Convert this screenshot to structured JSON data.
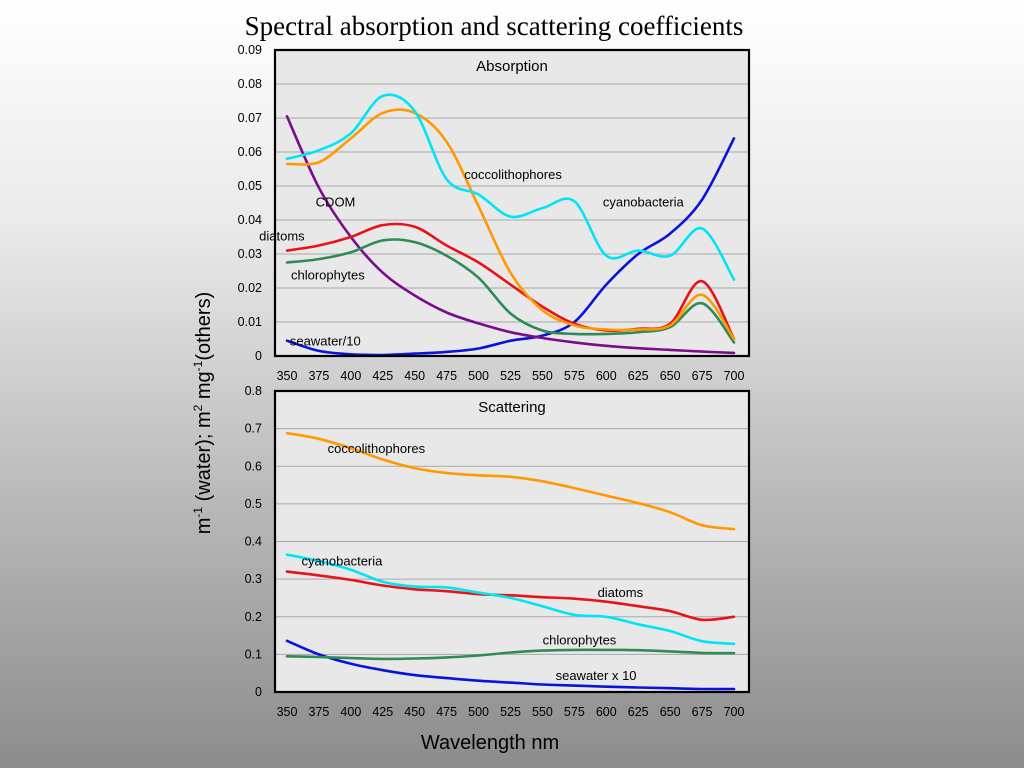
{
  "figure": {
    "title": "Spectral absorption and scattering coefficients",
    "xlabel": "Wavelength nm",
    "ylabel": {
      "p1": "m",
      "s1": "-1",
      "p2": " (water); m",
      "s2": "2",
      "p3": " mg",
      "s3": "-1",
      "p4": "(others)"
    }
  },
  "chart_data": [
    {
      "type": "line",
      "title": "Absorption",
      "x": [
        350,
        375,
        400,
        425,
        450,
        475,
        500,
        525,
        550,
        575,
        600,
        625,
        650,
        675,
        700
      ],
      "ylim": [
        0,
        0.09
      ],
      "yticks": [
        0,
        0.01,
        0.02,
        0.03,
        0.04,
        0.05,
        0.06,
        0.07,
        0.08,
        0.09
      ],
      "ytick_labels": [
        "0",
        "0.01",
        "0.02",
        "0.03",
        "0.04",
        "0.05",
        "0.06",
        "0.07",
        "0.08",
        "0.09"
      ],
      "grid": true,
      "series": [
        {
          "name": "seawater/10",
          "color": "#0a14d8",
          "values": [
            0.0045,
            0.0015,
            0.0005,
            0.0003,
            0.0007,
            0.0012,
            0.0022,
            0.0045,
            0.006,
            0.01,
            0.021,
            0.03,
            0.036,
            0.046,
            0.064
          ]
        },
        {
          "name": "CDOM",
          "color": "#7a0d8c",
          "values": [
            0.0705,
            0.0495,
            0.035,
            0.0245,
            0.0178,
            0.0128,
            0.0096,
            0.007,
            0.0053,
            0.004,
            0.003,
            0.0023,
            0.0018,
            0.0013,
            0.0009
          ]
        },
        {
          "name": "diatoms",
          "color": "#e8121b",
          "values": [
            0.031,
            0.0325,
            0.035,
            0.0385,
            0.038,
            0.0325,
            0.0275,
            0.021,
            0.0145,
            0.0095,
            0.0075,
            0.008,
            0.0095,
            0.022,
            0.005
          ]
        },
        {
          "name": "chlorophytes",
          "color": "#2e8b57",
          "values": [
            0.0275,
            0.0285,
            0.0305,
            0.034,
            0.0335,
            0.0295,
            0.023,
            0.0125,
            0.0075,
            0.0065,
            0.0065,
            0.007,
            0.0085,
            0.0155,
            0.004
          ]
        },
        {
          "name": "coccolithophores",
          "color": "#ff9900",
          "values": [
            0.0565,
            0.057,
            0.064,
            0.0715,
            0.0715,
            0.063,
            0.044,
            0.0245,
            0.0135,
            0.009,
            0.0078,
            0.0078,
            0.009,
            0.018,
            0.005
          ]
        },
        {
          "name": "cyanobacteria",
          "color": "#00e5f5",
          "values": [
            0.058,
            0.0605,
            0.0655,
            0.0765,
            0.072,
            0.052,
            0.0475,
            0.041,
            0.0435,
            0.0455,
            0.0295,
            0.031,
            0.0295,
            0.0375,
            0.0225
          ]
        }
      ],
      "annotations": [
        {
          "text": "coccolithophores",
          "x": 527,
          "y": 0.0535
        },
        {
          "text": "cyanobacteria",
          "x": 629,
          "y": 0.0455
        },
        {
          "text": "CDOM",
          "x": 388,
          "y": 0.0455
        },
        {
          "text": "diatoms",
          "x": 346,
          "y": 0.0355
        },
        {
          "text": "chlorophytes",
          "x": 382,
          "y": 0.024
        },
        {
          "text": "seawater/10",
          "x": 380,
          "y": 0.0045
        }
      ]
    },
    {
      "type": "line",
      "title": "Scattering",
      "x": [
        350,
        375,
        400,
        425,
        450,
        475,
        500,
        525,
        550,
        575,
        600,
        625,
        650,
        675,
        700
      ],
      "ylim": [
        0,
        0.8
      ],
      "yticks": [
        0,
        0.1,
        0.2,
        0.3,
        0.4,
        0.5,
        0.6,
        0.7,
        0.8
      ],
      "ytick_labels": [
        "0",
        "0.1",
        "0.2",
        "0.3",
        "0.4",
        "0.5",
        "0.6",
        "0.7",
        "0.8"
      ],
      "grid": true,
      "series": [
        {
          "name": "seawater x 10",
          "color": "#0a14d8",
          "values": [
            0.136,
            0.1,
            0.075,
            0.058,
            0.045,
            0.037,
            0.03,
            0.025,
            0.02,
            0.017,
            0.014,
            0.012,
            0.01,
            0.008,
            0.008
          ]
        },
        {
          "name": "chlorophytes",
          "color": "#2e8b57",
          "values": [
            0.095,
            0.093,
            0.09,
            0.088,
            0.089,
            0.092,
            0.097,
            0.105,
            0.11,
            0.112,
            0.112,
            0.111,
            0.108,
            0.104,
            0.103
          ]
        },
        {
          "name": "diatoms",
          "color": "#e8121b",
          "values": [
            0.32,
            0.31,
            0.298,
            0.283,
            0.273,
            0.268,
            0.26,
            0.257,
            0.252,
            0.248,
            0.24,
            0.228,
            0.215,
            0.192,
            0.2
          ]
        },
        {
          "name": "cyanobacteria",
          "color": "#00e5f5",
          "values": [
            0.365,
            0.348,
            0.325,
            0.293,
            0.28,
            0.278,
            0.264,
            0.25,
            0.228,
            0.205,
            0.2,
            0.18,
            0.162,
            0.135,
            0.128
          ]
        },
        {
          "name": "coccolithophores",
          "color": "#ff9900",
          "values": [
            0.688,
            0.673,
            0.648,
            0.618,
            0.595,
            0.582,
            0.576,
            0.572,
            0.56,
            0.542,
            0.522,
            0.502,
            0.478,
            0.443,
            0.433
          ]
        }
      ],
      "annotations": [
        {
          "text": "coccolithophores",
          "x": 420,
          "y": 0.648
        },
        {
          "text": "cyanobacteria",
          "x": 393,
          "y": 0.35
        },
        {
          "text": "diatoms",
          "x": 611,
          "y": 0.266
        },
        {
          "text": "chlorophytes",
          "x": 579,
          "y": 0.14
        },
        {
          "text": "seawater x 10",
          "x": 592,
          "y": 0.045
        }
      ]
    }
  ]
}
